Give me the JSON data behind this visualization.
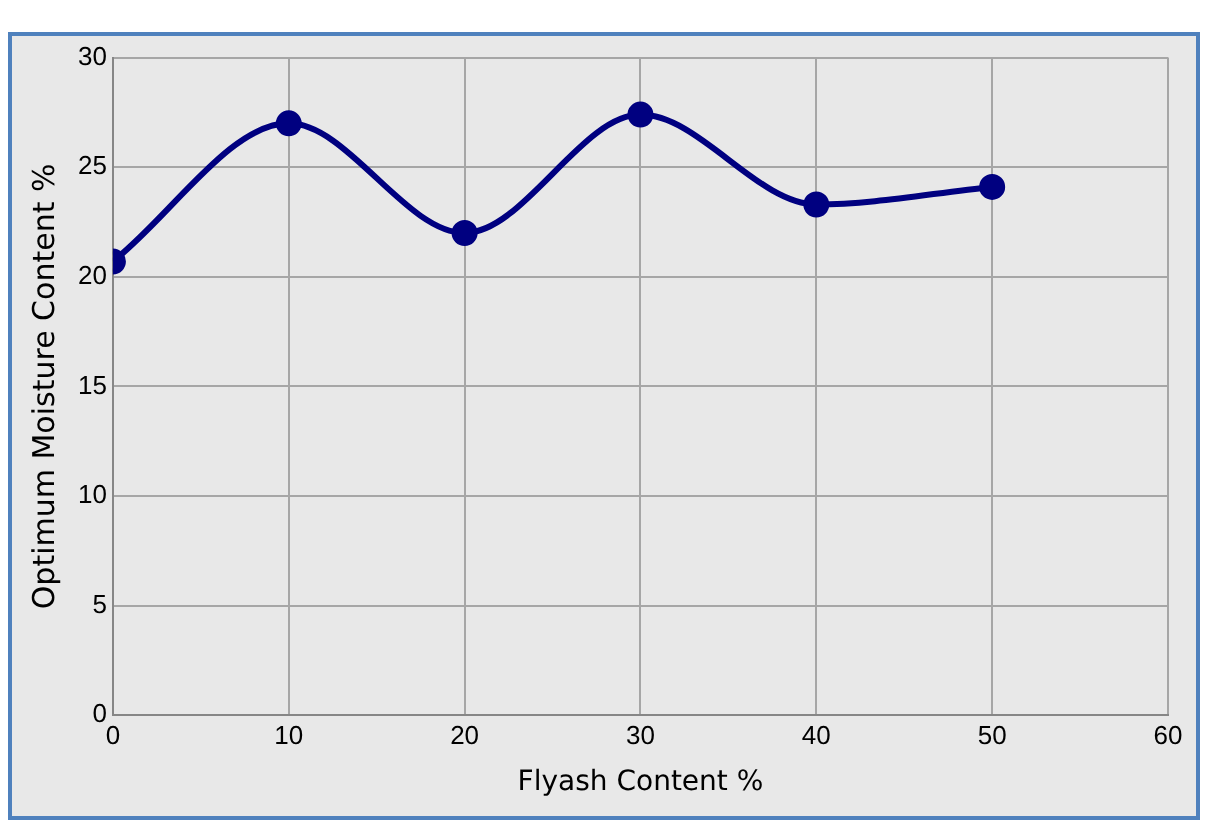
{
  "chart_data": {
    "type": "line",
    "xlabel": "Flyash Content %",
    "ylabel": "Optimum Moisture Content %",
    "x": [
      0,
      10,
      20,
      30,
      40,
      50
    ],
    "series": [
      {
        "color": "#000080",
        "values": [
          20.7,
          27.0,
          22.0,
          27.4,
          23.3,
          24.1
        ]
      }
    ],
    "xlim": [
      0,
      60
    ],
    "xticks": [
      0,
      10,
      20,
      30,
      40,
      50,
      60
    ],
    "ylim": [
      0,
      30
    ],
    "yticks": [
      0,
      5,
      10,
      15,
      20,
      25,
      30
    ],
    "grid": true,
    "legend": false,
    "marker": "circle",
    "line_style": "solid"
  }
}
